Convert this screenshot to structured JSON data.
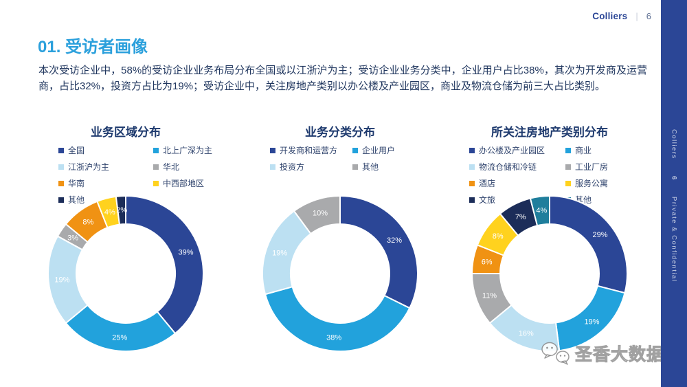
{
  "header": {
    "brand": "Colliers",
    "divider": "|",
    "page_number": "6"
  },
  "slide": {
    "title": "01. 受访者画像",
    "intro": "本次受访企业中，58%的受访企业业务布局分布全国或以江浙沪为主；受访企业业务分类中，企业用户占比38%，其次为开发商及运营商，占比32%，投资方占比为19%；受访企业中，关注房地产类别以办公楼及产业园区，商业及物流仓储为前三大占比类别。"
  },
  "sidebar": {
    "brand": "Colliers",
    "page_number": "6",
    "label": "Private & Confidential",
    "bg_color": "#2B4696"
  },
  "watermark": {
    "icon": "wechat-icon",
    "text": "圣香大数据"
  },
  "colors": {
    "title_accent": "#2BA0DC",
    "body_text": "#21375F",
    "chart_title": "#1E3A6E",
    "dark_blue": "#2B4696",
    "mid_blue": "#22A2DC",
    "light_blue": "#BCE0F2",
    "gray": "#A9AAAC",
    "orange": "#F09213",
    "yellow": "#FFD21E",
    "navy": "#1C2D59",
    "teal": "#1F7E9C"
  },
  "chart_data": [
    {
      "type": "pie",
      "subtype": "donut",
      "title": "业务区域分布",
      "unit": "%",
      "start_angle": "12-oclock",
      "direction": "clockwise",
      "legend_position": "top",
      "series": [
        {
          "label": "全国",
          "value": 39,
          "display": "39%",
          "color": "#2B4696"
        },
        {
          "label": "北上广深为主",
          "value": 25,
          "display": "25%",
          "color": "#22A2DC"
        },
        {
          "label": "江浙沪为主",
          "value": 19,
          "display": "19%",
          "color": "#BCE0F2"
        },
        {
          "label": "华北",
          "value": 3,
          "display": "3%",
          "color": "#A9AAAC"
        },
        {
          "label": "华南",
          "value": 8,
          "display": "8%",
          "color": "#F09213"
        },
        {
          "label": "中西部地区",
          "value": 4,
          "display": "4%",
          "color": "#FFD21E"
        },
        {
          "label": "其他",
          "value": 2,
          "display": "2%",
          "color": "#1C2D59"
        }
      ]
    },
    {
      "type": "pie",
      "subtype": "donut",
      "title": "业务分类分布",
      "unit": "%",
      "start_angle": "12-oclock",
      "direction": "clockwise",
      "legend_position": "top",
      "series": [
        {
          "label": "开发商和运营方",
          "value": 32,
          "display": "32%",
          "color": "#2B4696"
        },
        {
          "label": "企业用户",
          "value": 38,
          "display": "38%",
          "color": "#22A2DC"
        },
        {
          "label": "投资方",
          "value": 19,
          "display": "19%",
          "color": "#BCE0F2"
        },
        {
          "label": "其他",
          "value": 10,
          "display": "10%",
          "color": "#A9AAAC"
        }
      ]
    },
    {
      "type": "pie",
      "subtype": "donut",
      "title": "所关注房地产类别分布",
      "unit": "%",
      "start_angle": "12-oclock",
      "direction": "clockwise",
      "legend_position": "top",
      "series": [
        {
          "label": "办公楼及产业园区",
          "value": 29,
          "display": "29%",
          "color": "#2B4696"
        },
        {
          "label": "商业",
          "value": 19,
          "display": "19%",
          "color": "#22A2DC"
        },
        {
          "label": "物流仓储和冷链",
          "value": 16,
          "display": "16%",
          "color": "#BCE0F2"
        },
        {
          "label": "工业厂房",
          "value": 11,
          "display": "11%",
          "color": "#A9AAAC"
        },
        {
          "label": "酒店",
          "value": 6,
          "display": "6%",
          "color": "#F09213"
        },
        {
          "label": "服务公寓",
          "value": 8,
          "display": "8%",
          "color": "#FFD21E"
        },
        {
          "label": "文旅",
          "value": 7,
          "display": "7%",
          "color": "#1C2D59"
        },
        {
          "label": "其他",
          "value": 4,
          "display": "4%",
          "color": "#1F7E9C"
        }
      ]
    }
  ]
}
